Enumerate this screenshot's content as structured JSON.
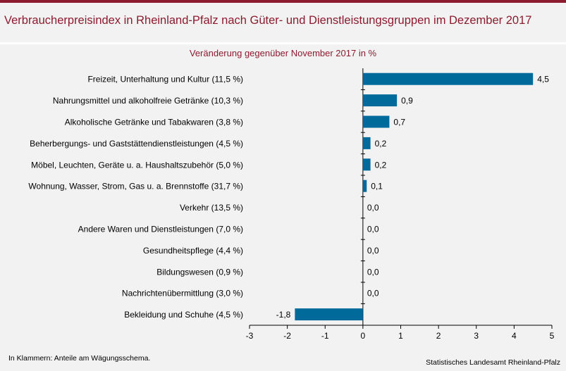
{
  "header": {
    "title": "Verbraucherpreisindex in Rheinland-Pfalz nach Güter- und Dienstleistungsgruppen im Dezember 2017"
  },
  "footer": {
    "note": "In Klammern: Anteile am Wägungsschema.",
    "source": "Statistisches Landesamt Rheinland-Pfalz"
  },
  "colors": {
    "accent": "#8c1b2f",
    "bar": "#006a9a"
  },
  "chart_data": {
    "type": "bar",
    "orientation": "horizontal",
    "title": "",
    "subtitle": "Veränderung gegenüber November 2017 in %",
    "xlabel": "",
    "ylabel": "",
    "xlim": [
      -3,
      5
    ],
    "xticks": [
      -3,
      -2,
      -1,
      0,
      1,
      2,
      3,
      4,
      5
    ],
    "xtick_labels": [
      "-3",
      "-2",
      "-1",
      "0",
      "1",
      "2",
      "3",
      "4",
      "5"
    ],
    "grid": false,
    "legend": "none",
    "categories": [
      "Freizeit, Unterhaltung und Kultur (11,5 %)",
      "Nahrungsmittel und alkoholfreie Getränke (10,3 %)",
      "Alkoholische Getränke und Tabakwaren (3,8 %)",
      "Beherbergungs- und Gaststättendienstleistungen (4,5 %)",
      "Möbel, Leuchten, Geräte u. a. Haushaltszubehör (5,0 %)",
      "Wohnung, Wasser, Strom, Gas u. a. Brennstoffe (31,7 %)",
      "Verkehr (13,5 %)",
      "Andere Waren und Dienstleistungen (7,0 %)",
      "Gesundheitspflege (4,4 %)",
      "Bildungswesen (0,9 %)",
      "Nachrichtenübermittlung (3,0 %)",
      "Bekleidung und Schuhe (4,5 %)"
    ],
    "values": [
      4.5,
      0.9,
      0.7,
      0.2,
      0.2,
      0.1,
      0.0,
      0.0,
      0.0,
      0.0,
      0.0,
      -1.8
    ],
    "value_labels": [
      "4,5",
      "0,9",
      "0,7",
      "0,2",
      "0,2",
      "0,1",
      "0,0",
      "0,0",
      "0,0",
      "0,0",
      "0,0",
      "-1,8"
    ]
  }
}
